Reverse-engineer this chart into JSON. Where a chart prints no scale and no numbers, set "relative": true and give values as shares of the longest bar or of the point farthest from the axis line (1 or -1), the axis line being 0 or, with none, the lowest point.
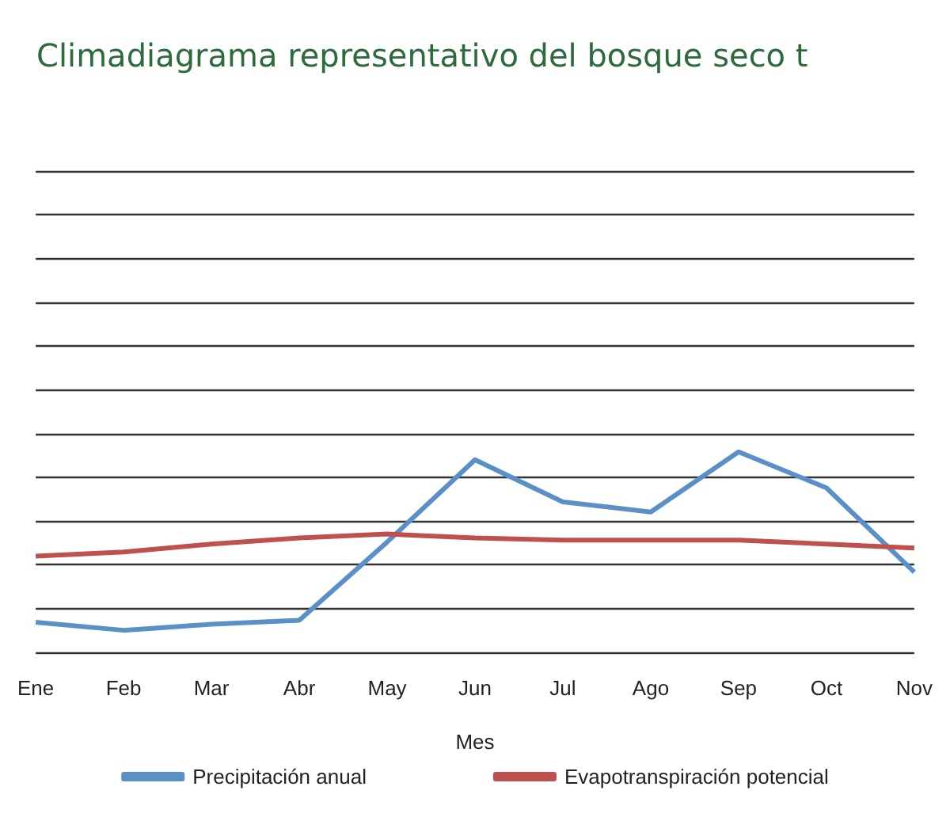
{
  "chart_data": {
    "type": "line",
    "title": "Climadiagrama representativo del bosque seco t",
    "xlabel": "Mes",
    "relative": true,
    "grid": "y",
    "legend": "bottom",
    "marker": "none",
    "line_style": "solid",
    "categories": [
      "Ene",
      "Feb",
      "Mar",
      "Abr",
      "May",
      "Jun",
      "Jul",
      "Ago",
      "Sep",
      "Oct",
      "Nov"
    ],
    "series": [
      {
        "name": "Precipitación anual",
        "color": "#5b8fc7",
        "values": [
          0.15,
          0.11,
          0.14,
          0.16,
          0.55,
          0.96,
          0.75,
          0.7,
          1,
          0.82,
          0.4
        ]
      },
      {
        "name": "Evapotranspiración potencial",
        "color": "#c0504d",
        "values": [
          0.48,
          0.5,
          0.54,
          0.57,
          0.59,
          0.57,
          0.56,
          0.56,
          0.56,
          0.54,
          0.52
        ]
      }
    ]
  }
}
